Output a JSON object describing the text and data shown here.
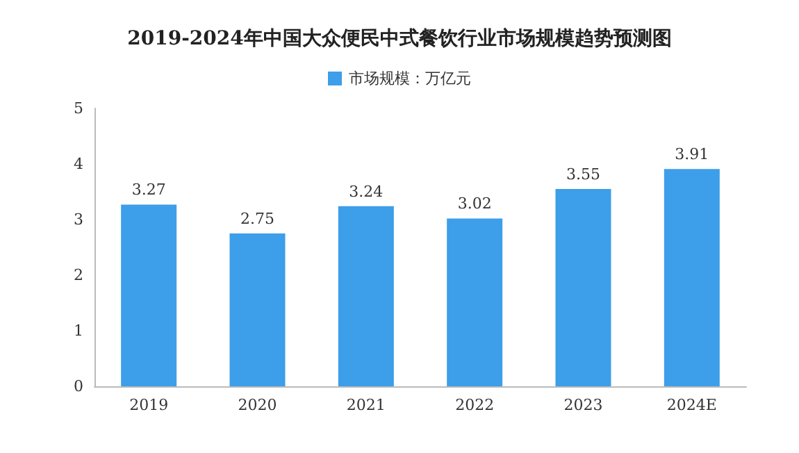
{
  "chart_data": {
    "type": "bar",
    "title": "2019-2024年中国大众便民中式餐饮行业市场规模趋势预测图",
    "categories": [
      "2019",
      "2020",
      "2021",
      "2022",
      "2023",
      "2024E"
    ],
    "series": [
      {
        "name": "市场规模：万亿元",
        "color": "#3d9ee9",
        "values": [
          3.27,
          2.75,
          3.24,
          3.02,
          3.55,
          3.91
        ]
      }
    ],
    "ylim": [
      0,
      5
    ],
    "yticks": [
      0,
      1,
      2,
      3,
      4,
      5
    ],
    "data_labels": true,
    "legend": "top",
    "grid": false
  }
}
